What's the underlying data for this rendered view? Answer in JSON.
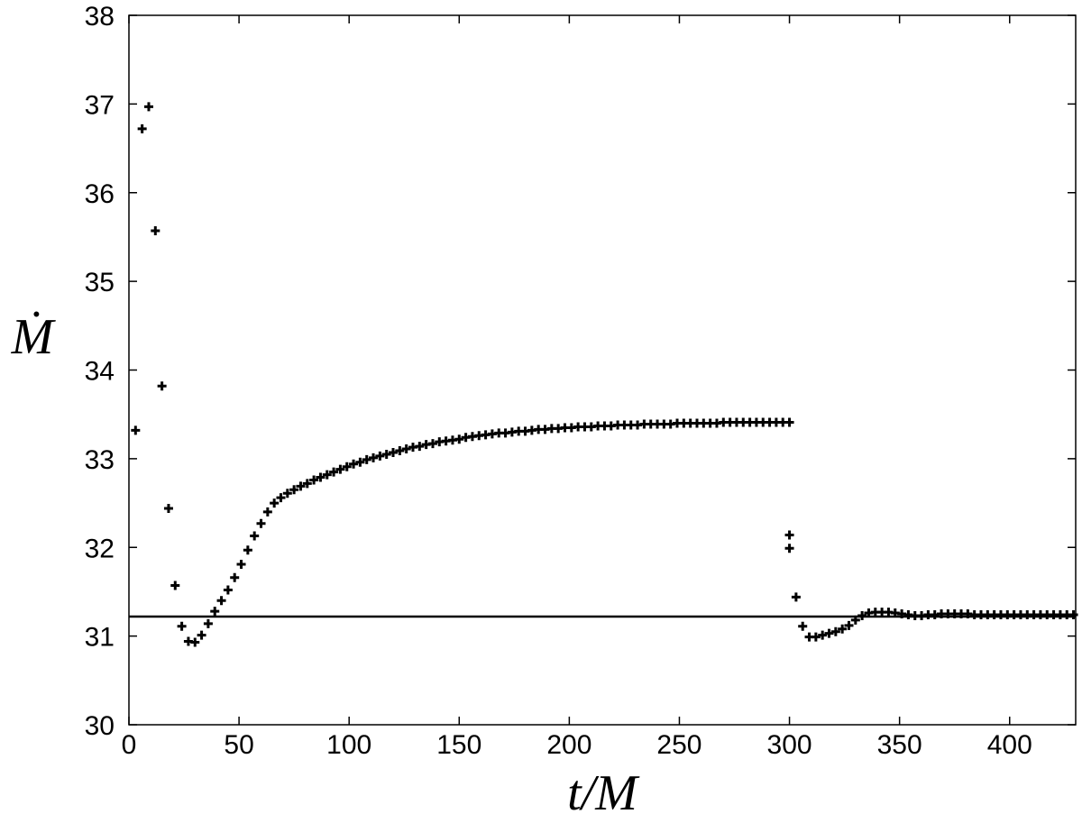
{
  "chart_data": {
    "type": "scatter",
    "xlabel": "t/M",
    "ylabel": "Ṁ",
    "xlim": [
      0,
      430
    ],
    "ylim": [
      30,
      38
    ],
    "x_ticks": [
      0,
      50,
      100,
      150,
      200,
      250,
      300,
      350,
      400
    ],
    "x_tick_labels": [
      "0",
      "50",
      "100",
      "150",
      "200",
      "250",
      "300",
      "350",
      "400"
    ],
    "y_ticks": [
      30,
      31,
      32,
      33,
      34,
      35,
      36,
      37,
      38
    ],
    "y_tick_labels": [
      "30",
      "31",
      "32",
      "33",
      "34",
      "35",
      "36",
      "37",
      "38"
    ],
    "grid": false,
    "marker": "plus",
    "color": "#000000",
    "reference_line": {
      "y": 31.22,
      "x_range": [
        0,
        430
      ],
      "color": "#000000"
    },
    "series": [
      {
        "x": [
          3,
          6,
          9,
          12,
          15,
          18,
          21,
          24,
          27,
          30,
          33,
          36,
          39,
          42,
          45,
          48,
          51,
          54,
          57,
          60,
          63,
          66,
          69,
          72,
          75,
          78,
          81,
          84,
          87,
          90,
          93,
          96,
          99,
          102,
          105,
          108,
          111,
          114,
          117,
          120,
          123,
          126,
          129,
          132,
          135,
          138,
          141,
          144,
          147,
          150,
          153,
          156,
          159,
          162,
          165,
          168,
          171,
          174,
          177,
          180,
          183,
          186,
          189,
          192,
          195,
          198,
          201,
          204,
          207,
          210,
          213,
          216,
          219,
          222,
          225,
          228,
          231,
          234,
          237,
          240,
          243,
          246,
          249,
          252,
          255,
          258,
          261,
          264,
          267,
          270,
          273,
          276,
          279,
          282,
          285,
          288,
          291,
          294,
          297,
          300,
          300,
          300,
          303,
          306,
          309,
          312,
          315,
          318,
          321,
          324,
          327,
          330,
          333,
          336,
          339,
          342,
          345,
          348,
          351,
          354,
          357,
          360,
          363,
          366,
          369,
          372,
          375,
          378,
          381,
          384,
          387,
          390,
          393,
          396,
          399,
          402,
          405,
          408,
          411,
          414,
          417,
          420,
          423,
          426,
          429
        ],
        "y": [
          33.32,
          36.72,
          36.97,
          35.57,
          33.82,
          32.44,
          31.57,
          31.11,
          30.94,
          30.93,
          31.01,
          31.14,
          31.28,
          31.4,
          31.52,
          31.66,
          31.81,
          31.97,
          32.13,
          32.27,
          32.4,
          32.5,
          32.56,
          32.61,
          32.65,
          32.69,
          32.72,
          32.76,
          32.79,
          32.82,
          32.85,
          32.88,
          32.91,
          32.94,
          32.96,
          32.99,
          33.01,
          33.03,
          33.05,
          33.07,
          33.09,
          33.11,
          33.13,
          33.14,
          33.16,
          33.17,
          33.19,
          33.2,
          33.21,
          33.22,
          33.24,
          33.25,
          33.26,
          33.27,
          33.28,
          33.29,
          33.29,
          33.3,
          33.31,
          33.31,
          33.32,
          33.33,
          33.33,
          33.34,
          33.34,
          33.35,
          33.35,
          33.36,
          33.36,
          33.36,
          33.37,
          33.37,
          33.37,
          33.38,
          33.38,
          33.38,
          33.38,
          33.39,
          33.39,
          33.39,
          33.39,
          33.39,
          33.4,
          33.4,
          33.4,
          33.4,
          33.4,
          33.4,
          33.4,
          33.41,
          33.41,
          33.41,
          33.41,
          33.41,
          33.41,
          33.41,
          33.41,
          33.41,
          33.41,
          33.41,
          32.14,
          31.99,
          31.44,
          31.11,
          30.99,
          30.99,
          31.01,
          31.03,
          31.05,
          31.08,
          31.12,
          31.18,
          31.23,
          31.26,
          31.27,
          31.27,
          31.27,
          31.26,
          31.25,
          31.24,
          31.23,
          31.23,
          31.24,
          31.24,
          31.25,
          31.25,
          31.25,
          31.25,
          31.25,
          31.24,
          31.24,
          31.24,
          31.24,
          31.24,
          31.24,
          31.24,
          31.24,
          31.24,
          31.24,
          31.24,
          31.24,
          31.24,
          31.24,
          31.24,
          31.24
        ]
      }
    ]
  }
}
